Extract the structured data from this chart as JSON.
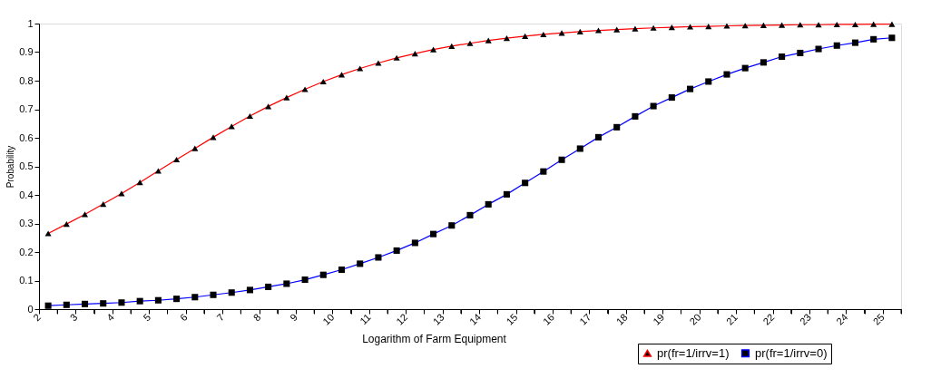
{
  "chart_data": {
    "type": "line",
    "xlabel": "Logarithm of Farm Equipment",
    "ylabel": "Probability",
    "x": [
      2.25,
      2.75,
      3.25,
      3.75,
      4.25,
      4.75,
      5.25,
      5.75,
      6.25,
      6.75,
      7.25,
      7.75,
      8.25,
      8.75,
      9.25,
      9.75,
      10.25,
      10.75,
      11.25,
      11.75,
      12.25,
      12.75,
      13.25,
      13.75,
      14.25,
      14.75,
      15.25,
      15.75,
      16.25,
      16.75,
      17.25,
      17.75,
      18.25,
      18.75,
      19.25,
      19.75,
      20.25,
      20.75,
      21.25,
      21.75,
      22.25,
      22.75,
      23.25,
      23.75,
      24.25,
      24.75,
      25.25
    ],
    "series": [
      {
        "name": "pr(fr=1/irrv=1)",
        "color": "#ff0000",
        "marker": "triangle",
        "values": [
          0.265,
          0.298,
          0.332,
          0.368,
          0.405,
          0.444,
          0.484,
          0.524,
          0.563,
          0.602,
          0.64,
          0.676,
          0.71,
          0.741,
          0.77,
          0.797,
          0.821,
          0.843,
          0.862,
          0.88,
          0.895,
          0.909,
          0.921,
          0.931,
          0.941,
          0.949,
          0.956,
          0.962,
          0.967,
          0.972,
          0.976,
          0.979,
          0.982,
          0.985,
          0.987,
          0.989,
          0.99,
          0.992,
          0.993,
          0.994,
          0.995,
          0.996,
          0.996,
          0.997,
          0.997,
          0.998,
          0.998
        ]
      },
      {
        "name": "pr(fr=1/irrv=0)",
        "color": "#0000ff",
        "marker": "square",
        "values": [
          0.012,
          0.015,
          0.018,
          0.02,
          0.023,
          0.028,
          0.031,
          0.036,
          0.042,
          0.05,
          0.058,
          0.067,
          0.078,
          0.089,
          0.103,
          0.12,
          0.138,
          0.159,
          0.181,
          0.205,
          0.232,
          0.263,
          0.293,
          0.329,
          0.367,
          0.402,
          0.442,
          0.482,
          0.523,
          0.562,
          0.602,
          0.637,
          0.675,
          0.711,
          0.741,
          0.771,
          0.797,
          0.822,
          0.844,
          0.864,
          0.884,
          0.897,
          0.911,
          0.923,
          0.933,
          0.945,
          0.95
        ]
      }
    ],
    "xlim": [
      2,
      25.5
    ],
    "xticks": [
      2,
      {
        "value": 2.5,
        "label": null
      },
      3,
      {
        "value": 3.5,
        "label": null
      },
      4,
      {
        "value": 4.5,
        "label": null
      },
      5,
      {
        "value": 5.5,
        "label": null
      },
      6,
      {
        "value": 6.5,
        "label": null
      },
      7,
      {
        "value": 7.5,
        "label": null
      },
      8,
      {
        "value": 8.5,
        "label": null
      },
      9,
      {
        "value": 9.5,
        "label": null
      },
      10,
      {
        "value": 10.5,
        "label": null
      },
      11,
      {
        "value": 11.5,
        "label": null
      },
      12,
      {
        "value": 12.5,
        "label": null
      },
      13,
      {
        "value": 13.5,
        "label": null
      },
      14,
      {
        "value": 14.5,
        "label": null
      },
      15,
      {
        "value": 15.5,
        "label": null
      },
      16,
      {
        "value": 16.5,
        "label": null
      },
      17,
      {
        "value": 17.5,
        "label": null
      },
      18,
      {
        "value": 18.5,
        "label": null
      },
      19,
      {
        "value": 19.5,
        "label": null
      },
      20,
      {
        "value": 20.5,
        "label": null
      },
      21,
      {
        "value": 21.5,
        "label": null
      },
      22,
      {
        "value": 22.5,
        "label": null
      },
      23,
      {
        "value": 23.5,
        "label": null
      },
      24,
      {
        "value": 24.5,
        "label": null
      },
      25,
      {
        "value": 25.5,
        "label": null
      }
    ],
    "ylim": [
      0,
      1
    ],
    "yticks": [
      0,
      0.1,
      0.2,
      0.3,
      0.4,
      0.5,
      0.6,
      0.7,
      0.8,
      0.9,
      1
    ],
    "grid": false,
    "legend": "bottom right"
  }
}
